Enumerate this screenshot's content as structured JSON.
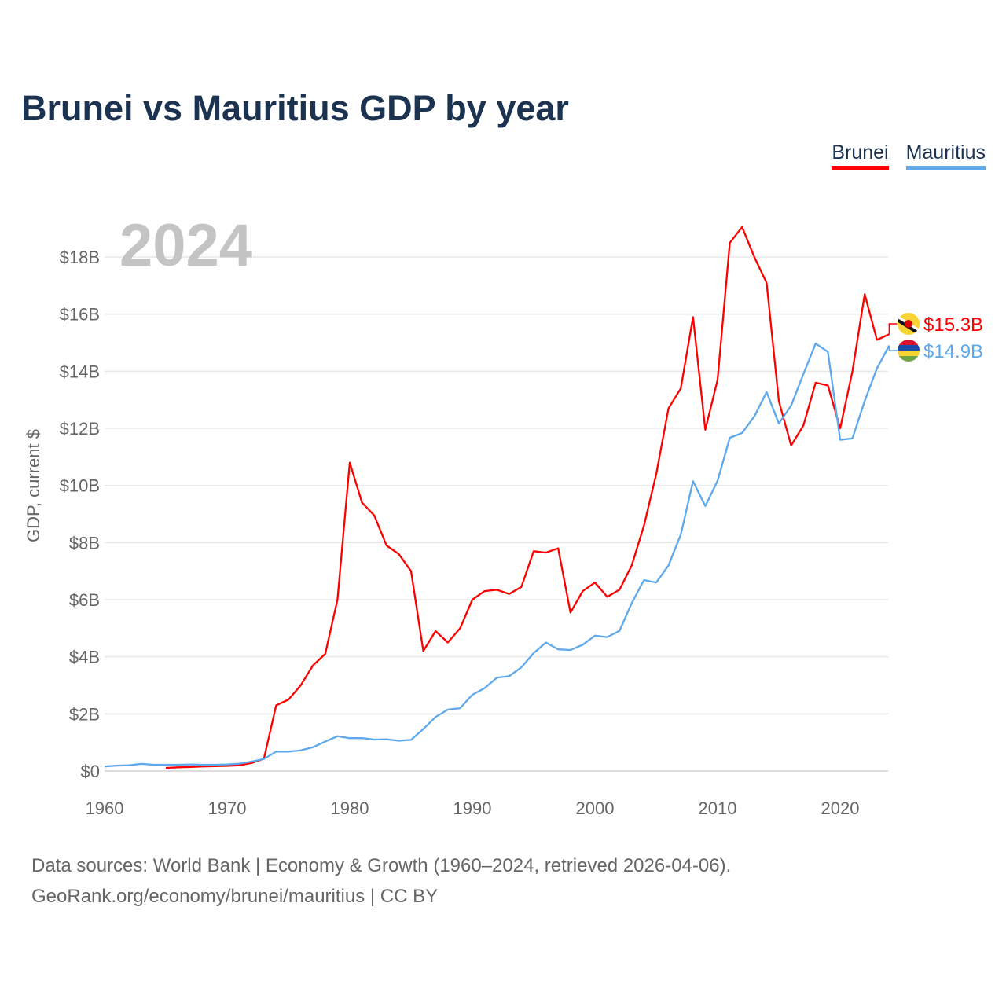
{
  "title": "Brunei vs Mauritius GDP by year",
  "colors": {
    "brunei": "#ff0000",
    "mauritius": "#5ea8ec",
    "title": "#1b3350"
  },
  "legend": [
    {
      "label": "Brunei",
      "color": "#ff0000"
    },
    {
      "label": "Mauritius",
      "color": "#5ea8ec"
    }
  ],
  "footer": {
    "line1": "Data sources: World Bank | Economy & Growth (1960–2024, retrieved 2026-04-06).",
    "line2": "GeoRank.org/economy/brunei/mauritius | CC BY"
  },
  "chart_data": {
    "type": "line",
    "title": "Brunei vs Mauritius GDP by year",
    "year_label": "2024",
    "xlabel": "",
    "ylabel": "GDP, current $",
    "xlim": [
      1960,
      2024
    ],
    "ylim": [
      0,
      19.5
    ],
    "unit": "billion USD",
    "grid": true,
    "legend_position": "top-right",
    "x_ticks": [
      1960,
      1970,
      1980,
      1990,
      2000,
      2010,
      2020
    ],
    "x_tick_labels": [
      "1960",
      "1970",
      "1980",
      "1990",
      "2000",
      "2010",
      "2020"
    ],
    "y_ticks": [
      0,
      2,
      4,
      6,
      8,
      10,
      12,
      14,
      16,
      18
    ],
    "y_tick_labels": [
      "$0",
      "$2B",
      "$4B",
      "$6B",
      "$8B",
      "$10B",
      "$12B",
      "$14B",
      "$16B",
      "$18B"
    ],
    "series": [
      {
        "name": "Brunei",
        "color": "#ff0000",
        "start_year": 1965,
        "end_label": "$15.3B",
        "flag": "brunei-flag",
        "values": [
          0.11,
          0.13,
          0.14,
          0.16,
          0.17,
          0.18,
          0.2,
          0.28,
          0.43,
          2.3,
          2.5,
          3.0,
          3.7,
          4.1,
          6.0,
          10.8,
          9.4,
          8.95,
          7.9,
          7.6,
          7.0,
          4.2,
          4.9,
          4.5,
          5.0,
          6.0,
          6.3,
          6.35,
          6.2,
          6.45,
          7.7,
          7.65,
          7.8,
          5.55,
          6.3,
          6.6,
          6.1,
          6.35,
          7.2,
          8.6,
          10.4,
          12.7,
          13.4,
          15.9,
          11.95,
          13.7,
          18.5,
          19.05,
          18.0,
          17.1,
          12.95,
          11.4,
          12.1,
          13.6,
          13.5,
          12.0,
          14.0,
          16.7,
          15.1,
          15.3
        ]
      },
      {
        "name": "Mauritius",
        "color": "#5ea8ec",
        "start_year": 1960,
        "end_label": "$14.9B",
        "flag": "mauritius-flag",
        "values": [
          0.16,
          0.19,
          0.2,
          0.25,
          0.22,
          0.22,
          0.22,
          0.23,
          0.22,
          0.22,
          0.23,
          0.26,
          0.33,
          0.42,
          0.68,
          0.68,
          0.72,
          0.83,
          1.03,
          1.22,
          1.15,
          1.15,
          1.1,
          1.11,
          1.06,
          1.09,
          1.47,
          1.89,
          2.15,
          2.2,
          2.67,
          2.9,
          3.27,
          3.32,
          3.63,
          4.13,
          4.5,
          4.26,
          4.24,
          4.42,
          4.74,
          4.69,
          4.91,
          5.88,
          6.69,
          6.6,
          7.2,
          8.28,
          10.15,
          9.28,
          10.16,
          11.67,
          11.84,
          12.42,
          13.27,
          12.17,
          12.8,
          13.9,
          14.97,
          14.68,
          11.6,
          11.65,
          12.96,
          14.1,
          14.9
        ]
      }
    ]
  }
}
